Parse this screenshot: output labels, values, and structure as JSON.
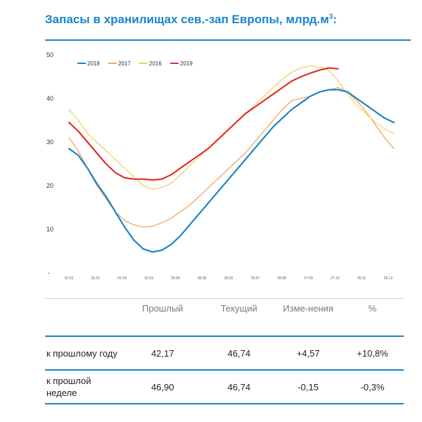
{
  "title": "Запасы в хранилищах сев.-зап Европы, млрд.м",
  "title_sup": "3",
  "title_suffix": ":",
  "chart_data": {
    "type": "line",
    "ylim": [
      0,
      50
    ],
    "yticks": [
      50,
      40,
      30,
      20,
      10
    ],
    "y_zero_label": "-",
    "x_tick_labels": [
      "01.01",
      "31.01",
      "01.03",
      "31.03",
      "30.04",
      "30.05",
      "29.06",
      "29.07",
      "28.08",
      "27.09",
      "27.10",
      "26.11",
      "26.12"
    ],
    "legend_position": "top-left",
    "grid": false,
    "series": [
      {
        "name": "2018",
        "color": "#1a85c8",
        "width": 2.2,
        "values": [
          28.5,
          27,
          24,
          20.5,
          17.5,
          14,
          10.5,
          7.5,
          5.5,
          4.8,
          5.2,
          6.5,
          8.5,
          11,
          13.5,
          16,
          18.5,
          21,
          23.5,
          26,
          28.5,
          31,
          33.5,
          35.5,
          37.5,
          39,
          40.5,
          41.5,
          42,
          42,
          41.5,
          40,
          38.5,
          37,
          35.5,
          34.5
        ]
      },
      {
        "name": "2017",
        "color": "#f5a35c",
        "width": 1.3,
        "values": [
          31,
          28,
          24,
          20,
          17,
          14,
          12,
          11,
          10.5,
          10.7,
          11.5,
          12.5,
          14,
          15.5,
          17.5,
          19.5,
          21.5,
          23.5,
          25.5,
          27.5,
          30,
          32.5,
          35,
          37.5,
          39.5,
          40,
          40.5,
          41.5,
          42,
          42.5,
          41.5,
          39.5,
          37,
          34,
          31,
          28.5
        ]
      },
      {
        "name": "2016",
        "color": "#f7cf6a",
        "width": 1.3,
        "values": [
          37.5,
          35,
          32,
          30,
          28,
          26,
          24,
          22,
          20,
          19.2,
          19.6,
          20.5,
          22.5,
          24.5,
          26.5,
          28.5,
          30.5,
          32.5,
          34.5,
          36.5,
          38.5,
          40.5,
          42.5,
          44.5,
          46,
          47,
          47.5,
          47.2,
          46.5,
          44,
          41,
          38.5,
          36.5,
          34.5,
          33,
          32
        ]
      },
      {
        "name": "2019",
        "color": "#e0302e",
        "width": 2.2,
        "values": [
          34.5,
          32.5,
          30,
          27.5,
          25,
          23,
          21.8,
          21.5,
          21.5,
          21.3,
          21.5,
          22.5,
          24,
          25.5,
          27,
          28.5,
          30.5,
          32.5,
          34.5,
          36.5,
          38,
          39.5,
          41,
          42.5,
          44,
          45,
          45.8,
          46.5,
          47,
          46.8
        ]
      }
    ]
  },
  "table": {
    "headers": [
      "",
      "Прошлый",
      "Текущий",
      "Изме-нения",
      "%"
    ],
    "rows": [
      {
        "label": "к прошлому году",
        "prev": "42,17",
        "curr": "46,74",
        "change": "+4,57",
        "pct": "+10,8%"
      },
      {
        "label": "к прошлой неделе",
        "prev": "46,90",
        "curr": "46,74",
        "change": "-0,15",
        "pct": "-0,3%"
      }
    ]
  }
}
